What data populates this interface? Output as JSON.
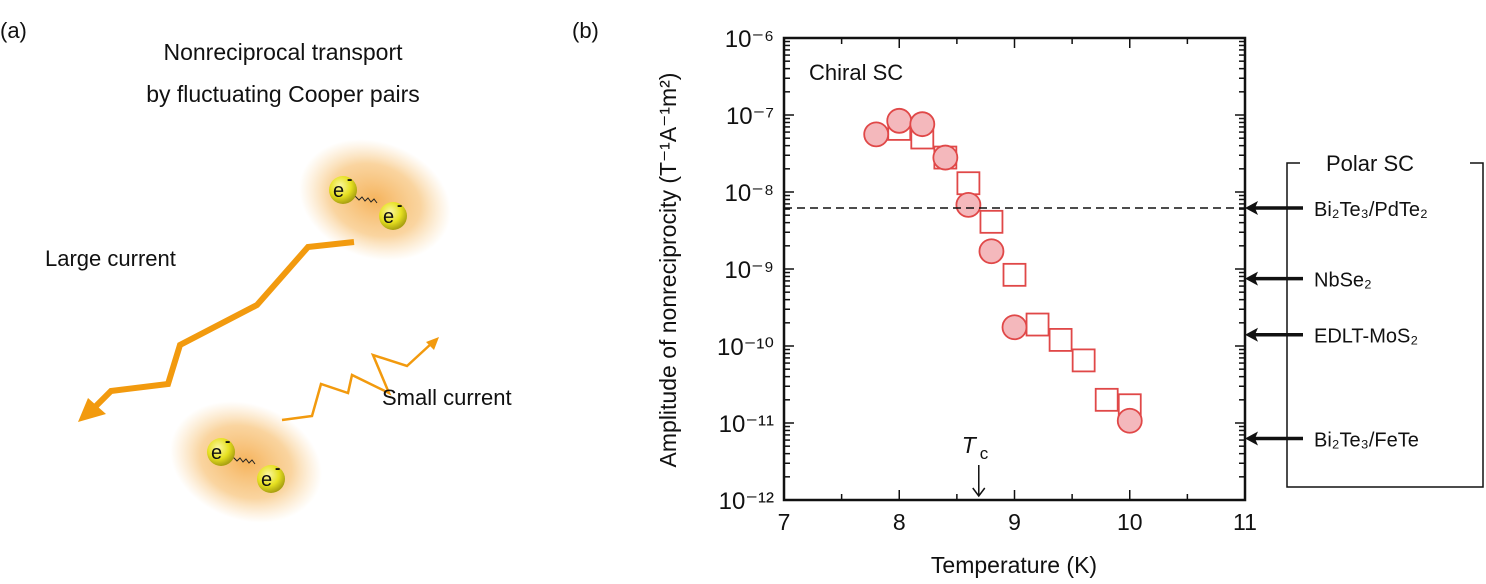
{
  "panel_a": {
    "label": "(a)",
    "title_line1": "Nonreciprocal transport",
    "title_line2": "by fluctuating Cooper pairs",
    "large_current_label": "Large current",
    "small_current_label": "Small current",
    "electron_label": "e",
    "electron_charge": "-",
    "colors": {
      "current": "#f29a0e",
      "glow": "#f6b860",
      "electron": "#e6e020"
    }
  },
  "panel_b": {
    "label": "(b)",
    "inset_label": "Chiral SC",
    "polar_box_title": "Polar SC",
    "references": [
      {
        "label": "Bi₂Te₃/PdTe₂",
        "value": 6.2e-09,
        "dashed_line": true
      },
      {
        "label": "NbSe₂",
        "value": 7.5e-10
      },
      {
        "label": "EDLT-MoS₂",
        "value": 1.4e-10
      },
      {
        "label": "Bi₂Te₃/FeTe",
        "value": 6.3e-12
      }
    ]
  },
  "chart_data": {
    "type": "scatter",
    "xlabel": "Temperature (K)",
    "ylabel": "Amplitude of  nonreciprocity  (T⁻¹A⁻¹m²)",
    "xlim": [
      7,
      11
    ],
    "ylim": [
      1e-12,
      1e-06
    ],
    "yscale": "log",
    "grid": false,
    "xticks": [
      7,
      8,
      9,
      10,
      11
    ],
    "xtick_labels": [
      "7",
      "8",
      "9",
      "10",
      "11"
    ],
    "yticks": [
      1e-06,
      1e-07,
      1e-08,
      1e-09,
      1e-10,
      1e-11,
      1e-12
    ],
    "ytick_labels": [
      "10⁻⁶",
      "10⁻⁷",
      "10⁻⁸",
      "10⁻⁹",
      "10⁻¹⁰",
      "10⁻¹¹",
      "10⁻¹²"
    ],
    "annotation": {
      "text": "T",
      "sub": "c",
      "x": 8.69
    },
    "series": [
      {
        "marker": "square-open",
        "color": "#e04848",
        "x": [
          8.0,
          8.2,
          8.4,
          8.6,
          8.8,
          9.0,
          9.2,
          9.4,
          9.6,
          9.8,
          10.0
        ],
        "y": [
          6.6e-08,
          5.1e-08,
          2.8e-08,
          1.3e-08,
          4.1e-09,
          8.4e-10,
          1.9e-10,
          1.2e-10,
          6.5e-11,
          2e-11,
          1.7e-11
        ]
      },
      {
        "marker": "circle-filled",
        "color": "#e04848",
        "fill": "#f4b8bc",
        "x": [
          7.8,
          8.0,
          8.2,
          8.4,
          8.6,
          8.8,
          9.0,
          10.0
        ],
        "y": [
          5.6e-08,
          8.4e-08,
          7.6e-08,
          2.8e-08,
          6.8e-09,
          1.7e-09,
          1.75e-10,
          1.07e-11
        ]
      }
    ]
  }
}
